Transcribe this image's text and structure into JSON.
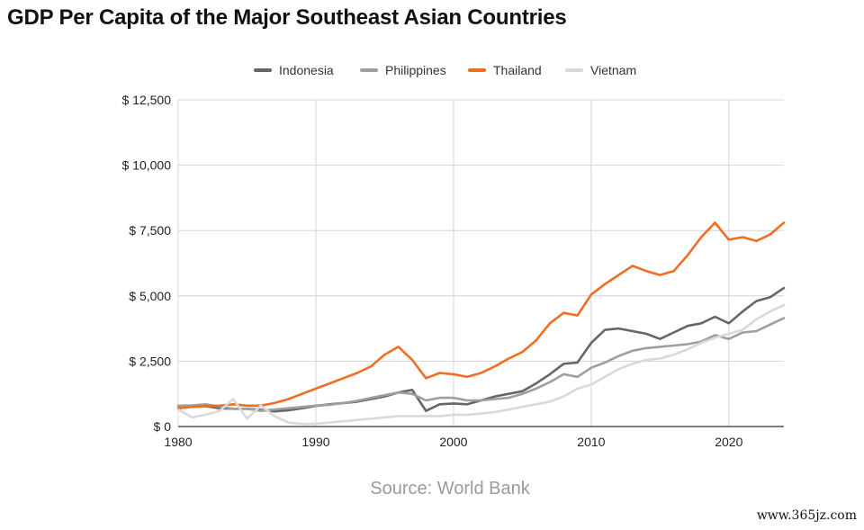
{
  "chart_data": {
    "type": "line",
    "title": "GDP Per Capita of the Major Southeast Asian Countries",
    "source": "Source: World Bank",
    "watermark": "www.365jz.com",
    "xlabel": "",
    "ylabel": "",
    "xlim": [
      1980,
      2024
    ],
    "ylim": [
      0,
      12500
    ],
    "x_ticks": [
      1980,
      1990,
      2000,
      2010,
      2020
    ],
    "y_ticks": [
      0,
      2500,
      5000,
      7500,
      10000,
      12500
    ],
    "y_tick_labels": [
      "$ 0",
      "$ 2,500",
      "$ 5,000",
      "$ 7,500",
      "$ 10,000",
      "$ 12,500"
    ],
    "legend_position": "top",
    "grid": true,
    "x": [
      1980,
      1981,
      1982,
      1983,
      1984,
      1985,
      1986,
      1987,
      1988,
      1989,
      1990,
      1991,
      1992,
      1993,
      1994,
      1995,
      1996,
      1997,
      1998,
      1999,
      2000,
      2001,
      2002,
      2003,
      2004,
      2005,
      2006,
      2007,
      2008,
      2009,
      2010,
      2011,
      2012,
      2013,
      2014,
      2015,
      2016,
      2017,
      2018,
      2019,
      2020,
      2021,
      2022,
      2023,
      2024
    ],
    "series": [
      {
        "name": "Indonesia",
        "color": "#666666",
        "values": [
          700,
          760,
          780,
          700,
          680,
          680,
          640,
          580,
          620,
          700,
          790,
          850,
          900,
          950,
          1050,
          1150,
          1300,
          1400,
          600,
          850,
          880,
          850,
          1000,
          1150,
          1250,
          1350,
          1650,
          2000,
          2400,
          2450,
          3200,
          3700,
          3750,
          3650,
          3550,
          3350,
          3600,
          3850,
          3950,
          4200,
          3950,
          4400,
          4800,
          4950,
          5300
        ]
      },
      {
        "name": "Philippines",
        "color": "#9e9e9e",
        "values": [
          800,
          810,
          850,
          760,
          680,
          680,
          600,
          650,
          700,
          750,
          800,
          830,
          900,
          980,
          1100,
          1200,
          1300,
          1250,
          1000,
          1100,
          1100,
          1000,
          1000,
          1050,
          1100,
          1250,
          1450,
          1700,
          2000,
          1900,
          2250,
          2450,
          2700,
          2900,
          3000,
          3050,
          3100,
          3150,
          3250,
          3500,
          3350,
          3600,
          3650,
          3900,
          4150
        ]
      },
      {
        "name": "Thailand",
        "color": "#f06d22",
        "values": [
          700,
          750,
          780,
          800,
          850,
          800,
          800,
          900,
          1050,
          1250,
          1450,
          1650,
          1850,
          2050,
          2300,
          2750,
          3050,
          2550,
          1850,
          2050,
          2000,
          1900,
          2050,
          2300,
          2600,
          2850,
          3300,
          3950,
          4350,
          4250,
          5050,
          5450,
          5800,
          6150,
          5950,
          5800,
          5950,
          6550,
          7250,
          7800,
          7150,
          7250,
          7100,
          7350,
          7800
        ]
      },
      {
        "name": "Vietnam",
        "color": "#d9d9d9",
        "values": [
          650,
          350,
          450,
          600,
          1050,
          300,
          800,
          400,
          150,
          100,
          100,
          150,
          200,
          250,
          300,
          350,
          400,
          400,
          400,
          400,
          450,
          450,
          500,
          550,
          650,
          750,
          850,
          950,
          1150,
          1450,
          1600,
          1900,
          2200,
          2400,
          2550,
          2600,
          2750,
          2950,
          3200,
          3400,
          3550,
          3700,
          4100,
          4400,
          4650
        ]
      }
    ]
  }
}
